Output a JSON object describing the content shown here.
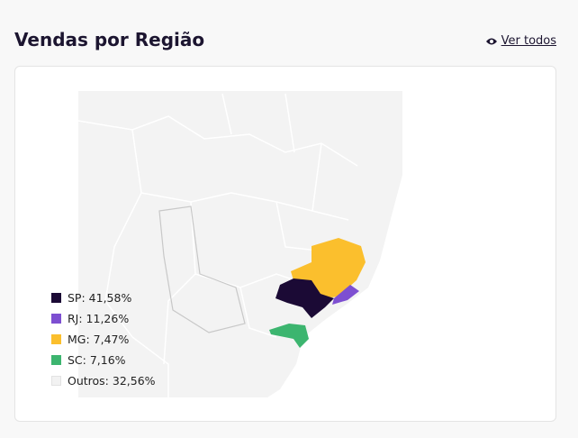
{
  "header": {
    "title": "Vendas por Região",
    "link": "Ver todos"
  },
  "legend": {
    "items": [
      {
        "label": "SP: 41,58%",
        "color": "#1b0a35"
      },
      {
        "label": "RJ: 11,26%",
        "color": "#7d4fd1"
      },
      {
        "label": "MG: 7,47%",
        "color": "#fbbf2d"
      },
      {
        "label": "SC: 7,16%",
        "color": "#3cb56f"
      },
      {
        "label": "Outros: 32,56%",
        "color": "#f2f2f2"
      }
    ]
  }
}
